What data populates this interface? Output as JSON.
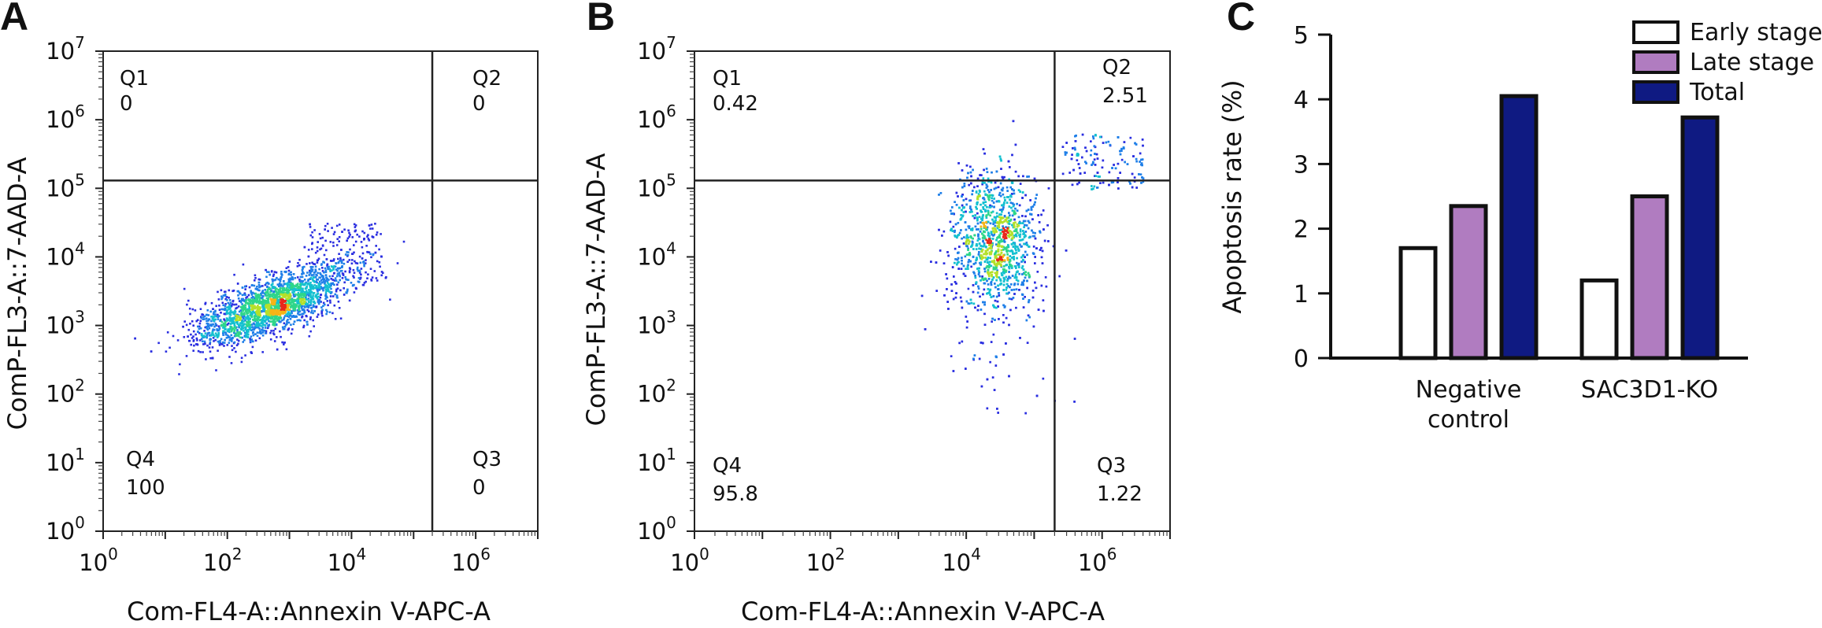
{
  "panels": {
    "A": {
      "letter": "A",
      "x_title": "Com-FL4-A::Annexin V-APC-A",
      "y_title": "ComP-FL3-A::7-AAD-A",
      "quadrants": {
        "q1": {
          "name": "Q1",
          "value": "0"
        },
        "q2": {
          "name": "Q2",
          "value": "0"
        },
        "q3": {
          "name": "Q3",
          "value": "0"
        },
        "q4": {
          "name": "Q4",
          "value": "100"
        }
      }
    },
    "B": {
      "letter": "B",
      "x_title": "Com-FL4-A::Annexin V-APC-A",
      "y_title": "ComP-FL3-A::7-AAD-A",
      "quadrants": {
        "q1": {
          "name": "Q1",
          "value": "0.42"
        },
        "q2": {
          "name": "Q2",
          "value": "2.51"
        },
        "q3": {
          "name": "Q3",
          "value": "1.22"
        },
        "q4": {
          "name": "Q4",
          "value": "95.8"
        }
      }
    },
    "C": {
      "letter": "C"
    }
  },
  "chart_data": [
    {
      "type": "scatter",
      "panel": "A",
      "xlabel": "Com-FL4-A::Annexin V-APC-A",
      "ylabel": "ComP-FL3-A::7-AAD-A",
      "x_scale": "log",
      "y_scale": "log",
      "xlim": [
        1,
        10000000
      ],
      "ylim": [
        1,
        10000000
      ],
      "x_ticks": [
        "10^0",
        "10^2",
        "10^4",
        "10^6"
      ],
      "y_ticks": [
        "10^0",
        "10^1",
        "10^2",
        "10^3",
        "10^4",
        "10^5",
        "10^6",
        "10^7"
      ],
      "gates": {
        "x": 200000,
        "y": 130000
      },
      "population_center": {
        "x": 500,
        "y": 2000
      },
      "quadrants": [
        {
          "name": "Q1",
          "value": 0
        },
        {
          "name": "Q2",
          "value": 0
        },
        {
          "name": "Q3",
          "value": 0
        },
        {
          "name": "Q4",
          "value": 100
        }
      ]
    },
    {
      "type": "scatter",
      "panel": "B",
      "xlabel": "Com-FL4-A::Annexin V-APC-A",
      "ylabel": "ComP-FL3-A::7-AAD-A",
      "x_scale": "log",
      "y_scale": "log",
      "xlim": [
        1,
        10000000
      ],
      "ylim": [
        1,
        10000000
      ],
      "x_ticks": [
        "10^0",
        "10^2",
        "10^4",
        "10^6"
      ],
      "y_ticks": [
        "10^0",
        "10^1",
        "10^2",
        "10^3",
        "10^4",
        "10^5",
        "10^6",
        "10^7"
      ],
      "gates": {
        "x": 200000,
        "y": 130000
      },
      "population_center": {
        "x": 25000,
        "y": 30000
      },
      "quadrants": [
        {
          "name": "Q1",
          "value": 0.42
        },
        {
          "name": "Q2",
          "value": 2.51
        },
        {
          "name": "Q3",
          "value": 1.22
        },
        {
          "name": "Q4",
          "value": 95.8
        }
      ]
    },
    {
      "type": "bar",
      "panel": "C",
      "categories": [
        "Negative control",
        "SAC3D1-KO"
      ],
      "ylabel": "Apoptosis rate (%)",
      "ylim": [
        0,
        5
      ],
      "y_ticks": [
        "0",
        "1",
        "2",
        "3",
        "4",
        "5"
      ],
      "legend_position": "top-right",
      "series": [
        {
          "name": "Early stage",
          "values": [
            1.7,
            1.2
          ],
          "color": "#ffffff"
        },
        {
          "name": "Late stage",
          "values": [
            2.35,
            2.5
          ],
          "color": "#b07cc0"
        },
        {
          "name": "Total",
          "values": [
            4.05,
            3.72
          ],
          "color": "#0f1a82"
        }
      ]
    }
  ]
}
